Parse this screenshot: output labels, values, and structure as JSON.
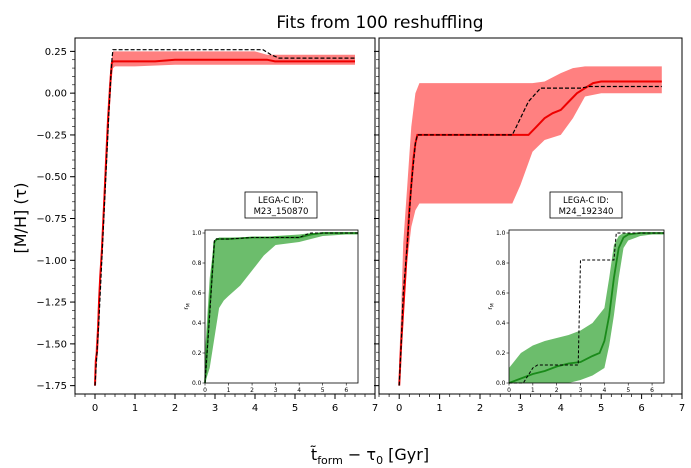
{
  "figure": {
    "title": "Fits from 100 reshuffling",
    "ylabel": "[M/H] (τ)",
    "xlabel": "t̃_form − τ₀ [Gyr]",
    "xlabel_main": "t̃",
    "xlabel_sub1": "form",
    "xlabel_mid": " − τ",
    "xlabel_sub2": "0",
    "xlabel_end": " [Gyr]"
  },
  "colors": {
    "band_main": "#ff8080",
    "median_main": "#ee0000",
    "band_inset": "#6cbd6c",
    "median_inset": "#1a8a1a",
    "dashed": "#000000"
  },
  "chart_data": [
    {
      "type": "line",
      "panel": "left",
      "xlim": [
        -0.5,
        7
      ],
      "ylim": [
        -1.8,
        0.33
      ],
      "xticks": [
        0,
        1,
        2,
        3,
        4,
        5,
        6,
        7
      ],
      "yticks": [
        -1.75,
        -1.5,
        -1.25,
        -1.0,
        -0.75,
        -0.5,
        -0.25,
        0.0,
        0.25
      ],
      "ytick_labels": [
        "−1.75",
        "−1.50",
        "−1.25",
        "−1.00",
        "−0.75",
        "−0.50",
        "−0.25",
        "0.00",
        "0.25"
      ],
      "series": [
        {
          "role": "band",
          "x": [
            0.0,
            0.05,
            0.1,
            0.15,
            0.2,
            0.25,
            0.3,
            0.35,
            0.4,
            0.45,
            0.5,
            1.0,
            2.0,
            3.0,
            4.0,
            4.3,
            4.5,
            5.0,
            6.0,
            6.5
          ],
          "lo": [
            -1.75,
            -1.55,
            -1.35,
            -1.1,
            -0.9,
            -0.55,
            -0.3,
            -0.1,
            0.05,
            0.15,
            0.16,
            0.16,
            0.17,
            0.17,
            0.17,
            0.17,
            0.17,
            0.17,
            0.17,
            0.17
          ],
          "hi": [
            -1.6,
            -1.4,
            -1.15,
            -0.95,
            -0.7,
            -0.4,
            -0.15,
            0.05,
            0.18,
            0.25,
            0.25,
            0.25,
            0.25,
            0.25,
            0.25,
            0.23,
            0.23,
            0.23,
            0.23,
            0.23
          ]
        },
        {
          "role": "median",
          "x": [
            0.0,
            0.02,
            0.05,
            0.08,
            0.1,
            0.13,
            0.17,
            0.2,
            0.23,
            0.27,
            0.3,
            0.33,
            0.37,
            0.4,
            0.42,
            0.45,
            0.5,
            1.5,
            2.0,
            3.0,
            4.0,
            4.3,
            4.5,
            5.0,
            6.0,
            6.5
          ],
          "y": [
            -1.75,
            -1.6,
            -1.55,
            -1.4,
            -1.25,
            -1.1,
            -0.95,
            -0.8,
            -0.65,
            -0.45,
            -0.3,
            -0.15,
            0.0,
            0.12,
            0.18,
            0.19,
            0.19,
            0.19,
            0.2,
            0.2,
            0.2,
            0.2,
            0.19,
            0.19,
            0.19,
            0.19
          ]
        },
        {
          "role": "dashed",
          "x": [
            0.0,
            0.05,
            0.1,
            0.15,
            0.2,
            0.25,
            0.3,
            0.35,
            0.4,
            0.43,
            0.45,
            1.0,
            2.0,
            3.0,
            4.2,
            4.4,
            4.6,
            5.0,
            6.0,
            6.5
          ],
          "y": [
            -1.75,
            -1.55,
            -1.35,
            -1.1,
            -0.85,
            -0.6,
            -0.35,
            -0.1,
            0.12,
            0.22,
            0.26,
            0.26,
            0.26,
            0.26,
            0.26,
            0.23,
            0.21,
            0.21,
            0.21,
            0.21
          ]
        }
      ],
      "inset": {
        "title_line1": "LEGA-C ID:",
        "title_line2": "M23_150870",
        "ylabel": "r",
        "ylabel_sub": "M",
        "xlim": [
          0,
          6.5
        ],
        "ylim": [
          0,
          1.02
        ],
        "xticks": [
          0,
          1,
          2,
          3,
          4,
          5,
          6
        ],
        "yticks": [
          0.0,
          0.2,
          0.4,
          0.6,
          0.8,
          1.0
        ],
        "ytick_labels": [
          "0.0",
          "0.2",
          "0.4",
          "0.6",
          "0.8",
          "1.0"
        ],
        "band_x": [
          0.0,
          0.2,
          0.4,
          0.6,
          0.8,
          1.0,
          1.5,
          2.0,
          2.5,
          3.0,
          4.0,
          4.5,
          5.0,
          6.0,
          6.5
        ],
        "band_lo": [
          0.0,
          0.1,
          0.3,
          0.5,
          0.55,
          0.58,
          0.65,
          0.75,
          0.85,
          0.92,
          0.94,
          0.96,
          0.98,
          0.99,
          0.99
        ],
        "band_hi": [
          0.2,
          0.7,
          0.95,
          0.97,
          0.97,
          0.97,
          0.97,
          0.97,
          0.97,
          0.98,
          0.99,
          1.0,
          1.0,
          1.0,
          1.0
        ],
        "median_x": [
          0.0,
          0.2,
          0.4,
          0.5,
          1.0,
          2.0,
          3.0,
          4.0,
          4.5,
          5.0,
          6.0,
          6.5
        ],
        "median_y": [
          0.0,
          0.5,
          0.94,
          0.96,
          0.96,
          0.97,
          0.97,
          0.97,
          0.99,
          1.0,
          1.0,
          1.0
        ],
        "dashed_x": [
          0.0,
          0.2,
          0.4,
          0.45,
          1.0,
          2.0,
          3.0,
          4.0,
          4.3,
          4.5,
          6.5
        ],
        "dashed_y": [
          0.0,
          0.45,
          0.95,
          0.96,
          0.96,
          0.97,
          0.97,
          0.97,
          0.99,
          1.0,
          1.0
        ]
      }
    },
    {
      "type": "line",
      "panel": "right",
      "xlim": [
        -0.5,
        7
      ],
      "ylim": [
        -1.8,
        0.33
      ],
      "xticks": [
        0,
        1,
        2,
        3,
        4,
        5,
        6,
        7
      ],
      "yticks": [
        -1.75,
        -1.5,
        -1.25,
        -1.0,
        -0.75,
        -0.5,
        -0.25,
        0.0,
        0.25
      ],
      "series": [
        {
          "role": "band",
          "x": [
            0.0,
            0.05,
            0.1,
            0.2,
            0.3,
            0.4,
            0.5,
            1.0,
            2.0,
            2.5,
            2.8,
            3.0,
            3.3,
            3.6,
            4.0,
            4.3,
            4.6,
            5.0,
            5.5,
            6.0,
            6.5
          ],
          "lo": [
            -1.75,
            -1.5,
            -1.2,
            -1.0,
            -0.8,
            -0.7,
            -0.66,
            -0.66,
            -0.66,
            -0.66,
            -0.66,
            -0.55,
            -0.35,
            -0.28,
            -0.25,
            -0.15,
            -0.02,
            0.0,
            0.0,
            0.0,
            0.0
          ],
          "hi": [
            -1.6,
            -1.3,
            -0.9,
            -0.55,
            -0.2,
            0.0,
            0.06,
            0.06,
            0.06,
            0.06,
            0.06,
            0.06,
            0.06,
            0.07,
            0.12,
            0.15,
            0.16,
            0.16,
            0.16,
            0.16,
            0.16
          ]
        },
        {
          "role": "median",
          "x": [
            0.0,
            0.05,
            0.1,
            0.15,
            0.2,
            0.25,
            0.3,
            0.35,
            0.4,
            0.45,
            1.0,
            2.0,
            2.8,
            3.0,
            3.2,
            3.4,
            3.6,
            3.8,
            4.0,
            4.2,
            4.4,
            4.6,
            4.8,
            5.0,
            6.0,
            6.5
          ],
          "y": [
            -1.75,
            -1.5,
            -1.3,
            -1.1,
            -0.9,
            -0.7,
            -0.55,
            -0.4,
            -0.3,
            -0.25,
            -0.25,
            -0.25,
            -0.25,
            -0.25,
            -0.25,
            -0.2,
            -0.15,
            -0.12,
            -0.1,
            -0.05,
            0.0,
            0.03,
            0.06,
            0.07,
            0.07,
            0.07
          ]
        },
        {
          "role": "dashed",
          "x": [
            0.0,
            0.05,
            0.1,
            0.2,
            0.3,
            0.4,
            0.45,
            1.0,
            2.0,
            2.8,
            2.9,
            3.2,
            3.5,
            4.0,
            4.5,
            4.7,
            5.0,
            6.0,
            6.5
          ],
          "y": [
            -1.75,
            -1.5,
            -1.2,
            -0.9,
            -0.55,
            -0.3,
            -0.25,
            -0.25,
            -0.25,
            -0.25,
            -0.2,
            -0.05,
            0.03,
            0.03,
            0.03,
            0.04,
            0.04,
            0.04,
            0.04
          ]
        }
      ],
      "inset": {
        "title_line1": "LEGA-C ID:",
        "title_line2": "M24_192340",
        "ylabel": "r",
        "ylabel_sub": "M",
        "xlim": [
          0,
          6.5
        ],
        "ylim": [
          0,
          1.02
        ],
        "xticks": [
          0,
          1,
          2,
          3,
          4,
          5,
          6
        ],
        "yticks": [
          0.0,
          0.2,
          0.4,
          0.6,
          0.8,
          1.0
        ],
        "ytick_labels": [
          "0.0",
          "0.2",
          "0.4",
          "0.6",
          "0.8",
          "1.0"
        ],
        "band_x": [
          0.0,
          0.5,
          1.0,
          1.5,
          2.0,
          2.5,
          3.0,
          3.5,
          4.0,
          4.2,
          4.4,
          4.6,
          4.8,
          5.0,
          5.5,
          6.0,
          6.5
        ],
        "band_lo": [
          0.0,
          0.0,
          0.0,
          0.0,
          0.0,
          0.0,
          0.02,
          0.05,
          0.1,
          0.25,
          0.45,
          0.7,
          0.9,
          0.95,
          0.98,
          0.99,
          0.99
        ],
        "band_hi": [
          0.1,
          0.2,
          0.25,
          0.28,
          0.3,
          0.32,
          0.35,
          0.4,
          0.5,
          0.7,
          0.92,
          0.98,
          1.0,
          1.0,
          1.0,
          1.0,
          1.0
        ],
        "median_x": [
          0.0,
          0.5,
          1.0,
          1.5,
          2.0,
          2.5,
          3.0,
          3.5,
          3.8,
          4.0,
          4.2,
          4.4,
          4.6,
          4.8,
          5.0,
          5.5,
          6.0,
          6.5
        ],
        "median_y": [
          0.0,
          0.03,
          0.06,
          0.08,
          0.11,
          0.13,
          0.14,
          0.18,
          0.2,
          0.28,
          0.45,
          0.7,
          0.9,
          0.97,
          0.99,
          1.0,
          1.0,
          1.0
        ],
        "dashed_x": [
          0.0,
          0.6,
          1.0,
          1.2,
          2.5,
          2.9,
          3.0,
          3.6,
          3.7,
          4.4,
          4.5,
          6.5
        ],
        "dashed_y": [
          0.0,
          0.0,
          0.1,
          0.12,
          0.12,
          0.12,
          0.82,
          0.82,
          0.82,
          0.82,
          1.0,
          1.0
        ]
      }
    }
  ]
}
